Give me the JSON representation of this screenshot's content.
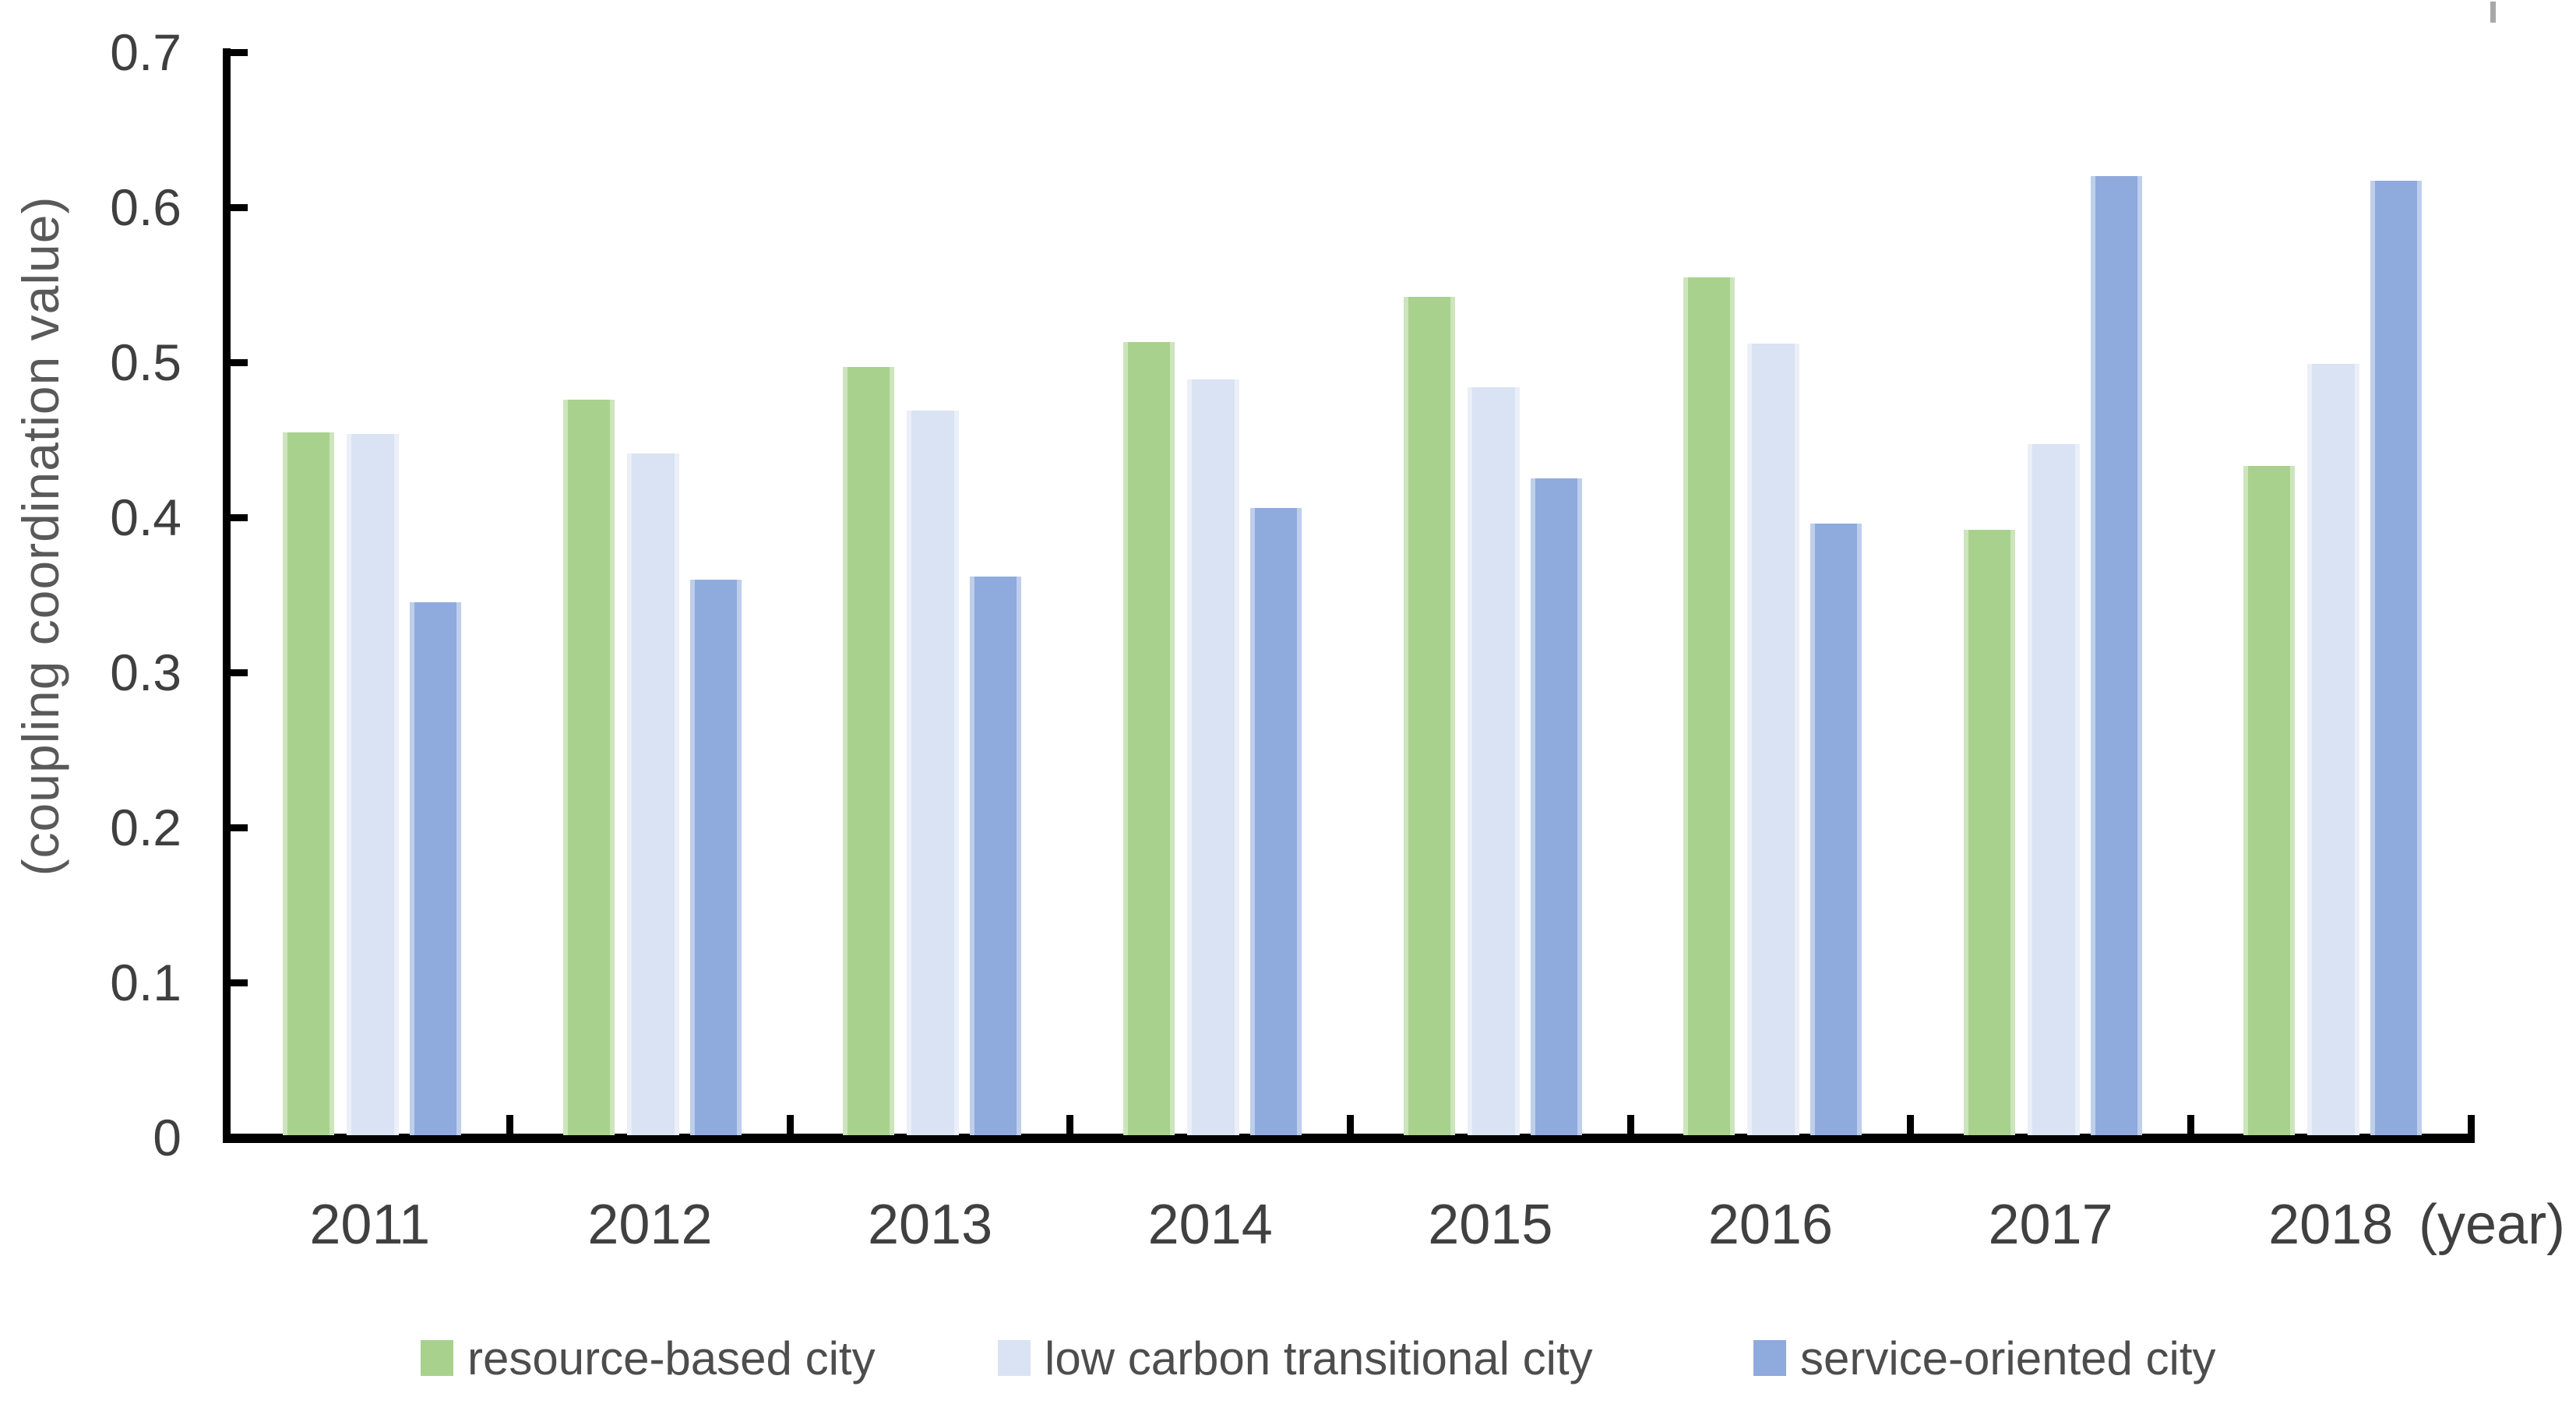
{
  "chart_data": {
    "type": "bar",
    "title": "",
    "categories": [
      "2011",
      "2012",
      "2013",
      "2014",
      "2015",
      "2016",
      "2017",
      "2018"
    ],
    "series": [
      {
        "name": "resource-based city",
        "color": "#a9d18e",
        "values": [
          0.455,
          0.476,
          0.497,
          0.513,
          0.542,
          0.555,
          0.392,
          0.433
        ]
      },
      {
        "name": "low carbon transitional city",
        "color": "#dae3f3",
        "values": [
          0.454,
          0.441,
          0.469,
          0.489,
          0.484,
          0.512,
          0.447,
          0.499
        ]
      },
      {
        "name": "service-oriented city",
        "color": "#8faadc",
        "values": [
          0.345,
          0.36,
          0.362,
          0.406,
          0.425,
          0.396,
          0.62,
          0.617
        ]
      }
    ],
    "xlabel": "(year)",
    "ylabel": "(coupling coordination value)",
    "ylim": [
      0,
      0.7
    ],
    "y_ticks": [
      0,
      0.1,
      0.2,
      0.3,
      0.4,
      0.5,
      0.6,
      0.7
    ],
    "y_tick_labels": [
      "0",
      "0.1",
      "0.2",
      "0.3",
      "0.4",
      "0.5",
      "0.6",
      "0.7"
    ],
    "grid": false,
    "legend_position": "bottom"
  },
  "colors": {
    "axis": "#000000",
    "tick_label": "#3f3f3f",
    "category_label": "#404040",
    "axis_title": "#595959",
    "legend_text": "#4d4d4d",
    "background": "#ffffff",
    "artifact": "#a8a8a8"
  }
}
